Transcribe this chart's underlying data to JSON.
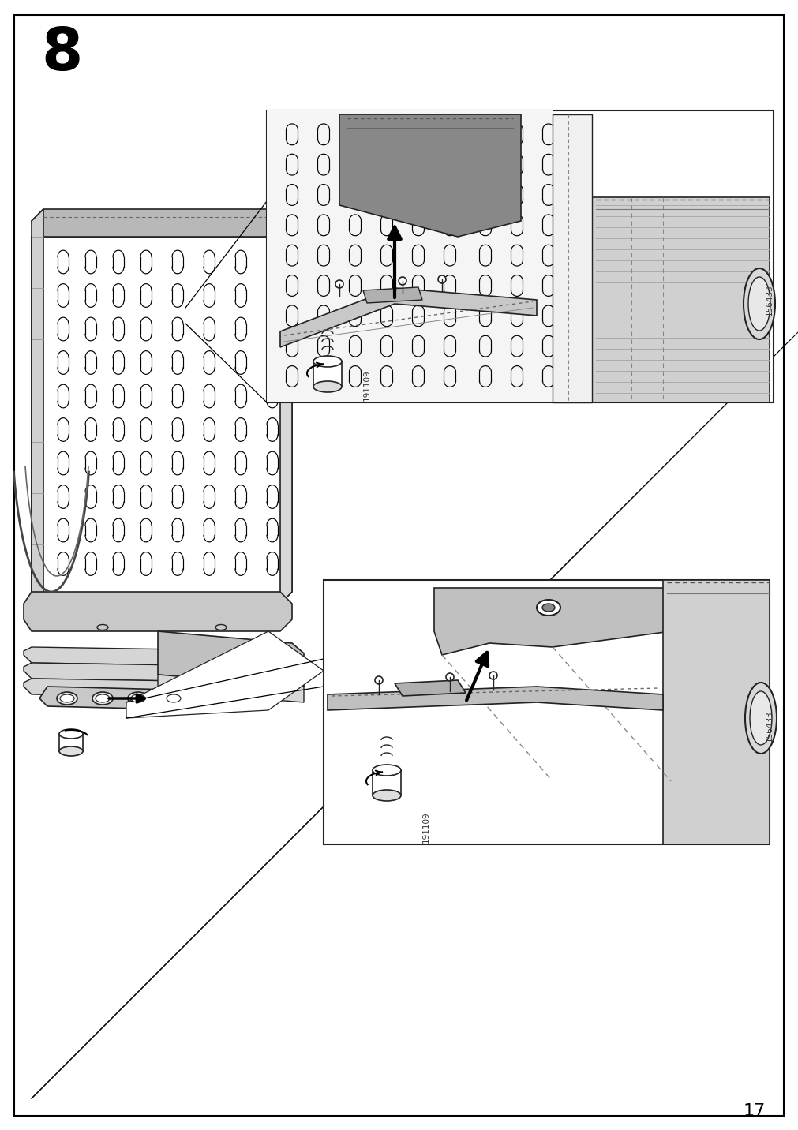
{
  "page_num": "17",
  "step_num": "8",
  "bg_color": "#ffffff",
  "border_color": "#000000",
  "text_color": "#000000",
  "part_id_1": "191109",
  "part_id_2": "156433",
  "fig_width": 10.12,
  "fig_height": 14.32,
  "dpi": 100,
  "gray_light": "#e8e8e8",
  "gray_mid": "#c8c8c8",
  "gray_dark": "#a0a0a0",
  "gray_cover": "#b0b0b0"
}
